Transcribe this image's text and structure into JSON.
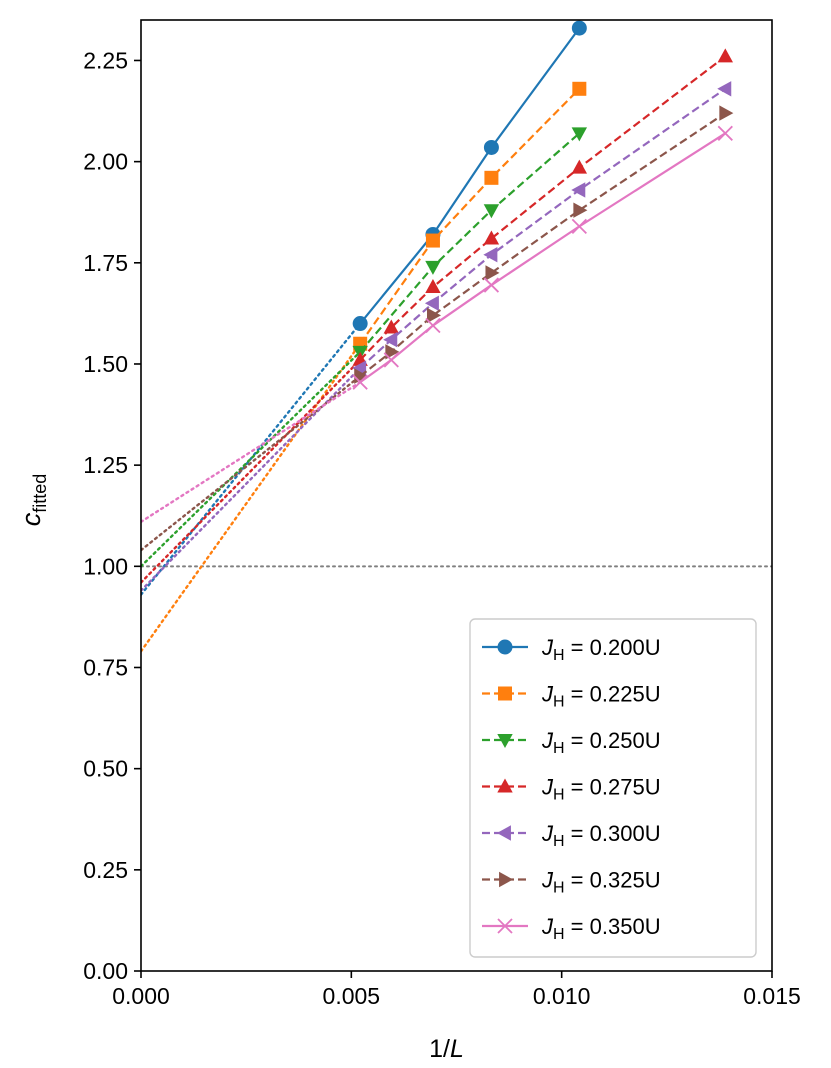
{
  "chart_data": {
    "type": "line",
    "xlabel": "1/L",
    "ylabel": "c_fitted",
    "xlim": [
      0.0,
      0.015
    ],
    "ylim": [
      0.0,
      2.35
    ],
    "x_ticks": [
      "0.000",
      "0.005",
      "0.010",
      "0.015"
    ],
    "y_ticks": [
      "0.00",
      "0.25",
      "0.50",
      "0.75",
      "1.00",
      "1.25",
      "1.50",
      "1.75",
      "2.00",
      "2.25"
    ],
    "reference_line": {
      "y": 1.0,
      "style": "dotted",
      "color": "#808080"
    },
    "legend_position": "lower-right",
    "series": [
      {
        "name": "J_H = 0.200U",
        "legend": {
          "sym": "J",
          "sub": "H",
          "rest": " = 0.200U"
        },
        "color": "#1f77b4",
        "marker": "circle",
        "linestyle": "solid",
        "x": [
          0.00521,
          0.00694,
          0.00833,
          0.01042
        ],
        "y": [
          1.6,
          1.82,
          2.035,
          2.33
        ],
        "extrapolation": {
          "x": [
            0.0,
            0.00521
          ],
          "y": [
            0.93,
            1.6
          ]
        }
      },
      {
        "name": "J_H = 0.225U",
        "legend": {
          "sym": "J",
          "sub": "H",
          "rest": " = 0.225U"
        },
        "color": "#ff7f0e",
        "marker": "square",
        "linestyle": "dashed",
        "x": [
          0.00521,
          0.00694,
          0.00833,
          0.01042
        ],
        "y": [
          1.55,
          1.805,
          1.96,
          2.18
        ],
        "extrapolation": {
          "x": [
            0.0,
            0.00521
          ],
          "y": [
            0.79,
            1.55
          ]
        }
      },
      {
        "name": "J_H = 0.250U",
        "legend": {
          "sym": "J",
          "sub": "H",
          "rest": " = 0.250U"
        },
        "color": "#2ca02c",
        "marker": "triangle-down",
        "linestyle": "dashed",
        "x": [
          0.00521,
          0.00694,
          0.00833,
          0.01042
        ],
        "y": [
          1.53,
          1.74,
          1.88,
          2.07
        ],
        "extrapolation": {
          "x": [
            0.0,
            0.00521
          ],
          "y": [
            1.0,
            1.53
          ]
        }
      },
      {
        "name": "J_H = 0.275U",
        "legend": {
          "sym": "J",
          "sub": "H",
          "rest": " = 0.275U"
        },
        "color": "#d62728",
        "marker": "triangle-up",
        "linestyle": "dashed",
        "x": [
          0.00521,
          0.00595,
          0.00694,
          0.00833,
          0.01042,
          0.01389
        ],
        "y": [
          1.51,
          1.59,
          1.69,
          1.81,
          1.985,
          2.26
        ],
        "extrapolation": {
          "x": [
            0.0,
            0.00521
          ],
          "y": [
            0.96,
            1.51
          ]
        }
      },
      {
        "name": "J_H = 0.300U",
        "legend": {
          "sym": "J",
          "sub": "H",
          "rest": " = 0.300U"
        },
        "color": "#9467bd",
        "marker": "triangle-left",
        "linestyle": "dashed",
        "x": [
          0.00521,
          0.00595,
          0.00694,
          0.00833,
          0.01042,
          0.01389
        ],
        "y": [
          1.49,
          1.56,
          1.65,
          1.77,
          1.93,
          2.18
        ],
        "extrapolation": {
          "x": [
            0.0,
            0.00521
          ],
          "y": [
            0.94,
            1.49
          ]
        }
      },
      {
        "name": "J_H = 0.325U",
        "legend": {
          "sym": "J",
          "sub": "H",
          "rest": " = 0.325U"
        },
        "color": "#8c564b",
        "marker": "triangle-right",
        "linestyle": "dashed",
        "x": [
          0.00521,
          0.00595,
          0.00694,
          0.00833,
          0.01042,
          0.01389
        ],
        "y": [
          1.47,
          1.53,
          1.62,
          1.725,
          1.88,
          2.12
        ],
        "extrapolation": {
          "x": [
            0.0,
            0.00521
          ],
          "y": [
            1.04,
            1.47
          ]
        }
      },
      {
        "name": "J_H = 0.350U",
        "legend": {
          "sym": "J",
          "sub": "H",
          "rest": " = 0.350U"
        },
        "color": "#e377c2",
        "marker": "x",
        "linestyle": "solid",
        "x": [
          0.00521,
          0.00595,
          0.00694,
          0.00833,
          0.01042,
          0.01389
        ],
        "y": [
          1.455,
          1.51,
          1.595,
          1.695,
          1.84,
          2.07
        ],
        "extrapolation": {
          "x": [
            0.0,
            0.00521
          ],
          "y": [
            1.11,
            1.455
          ]
        }
      }
    ]
  }
}
